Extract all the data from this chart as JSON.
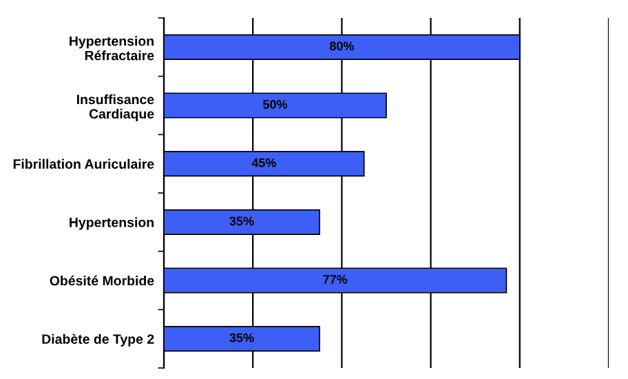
{
  "chart_data": {
    "type": "bar",
    "orientation": "horizontal",
    "categories": [
      "Hypertension\nRéfractaire",
      "Insuffisance\nCardiaque",
      "Fibrillation Auriculaire",
      "Hypertension",
      "Obésité Morbide",
      "Diabète de Type 2"
    ],
    "values": [
      80,
      50,
      45,
      35,
      77,
      35
    ],
    "value_labels": [
      "80%",
      "50%",
      "45%",
      "35%",
      "77%",
      "35%"
    ],
    "color": "#3e5ff5",
    "xlim": [
      0,
      100
    ],
    "xticks": [
      {
        "value": 0,
        "label": null
      },
      {
        "value": 20,
        "label": null
      },
      {
        "value": 40,
        "label": null
      },
      {
        "value": 60,
        "label": null
      },
      {
        "value": 80,
        "label": null
      },
      {
        "value": 100,
        "label": null
      }
    ],
    "tick_labels": "y",
    "grid": "x"
  }
}
